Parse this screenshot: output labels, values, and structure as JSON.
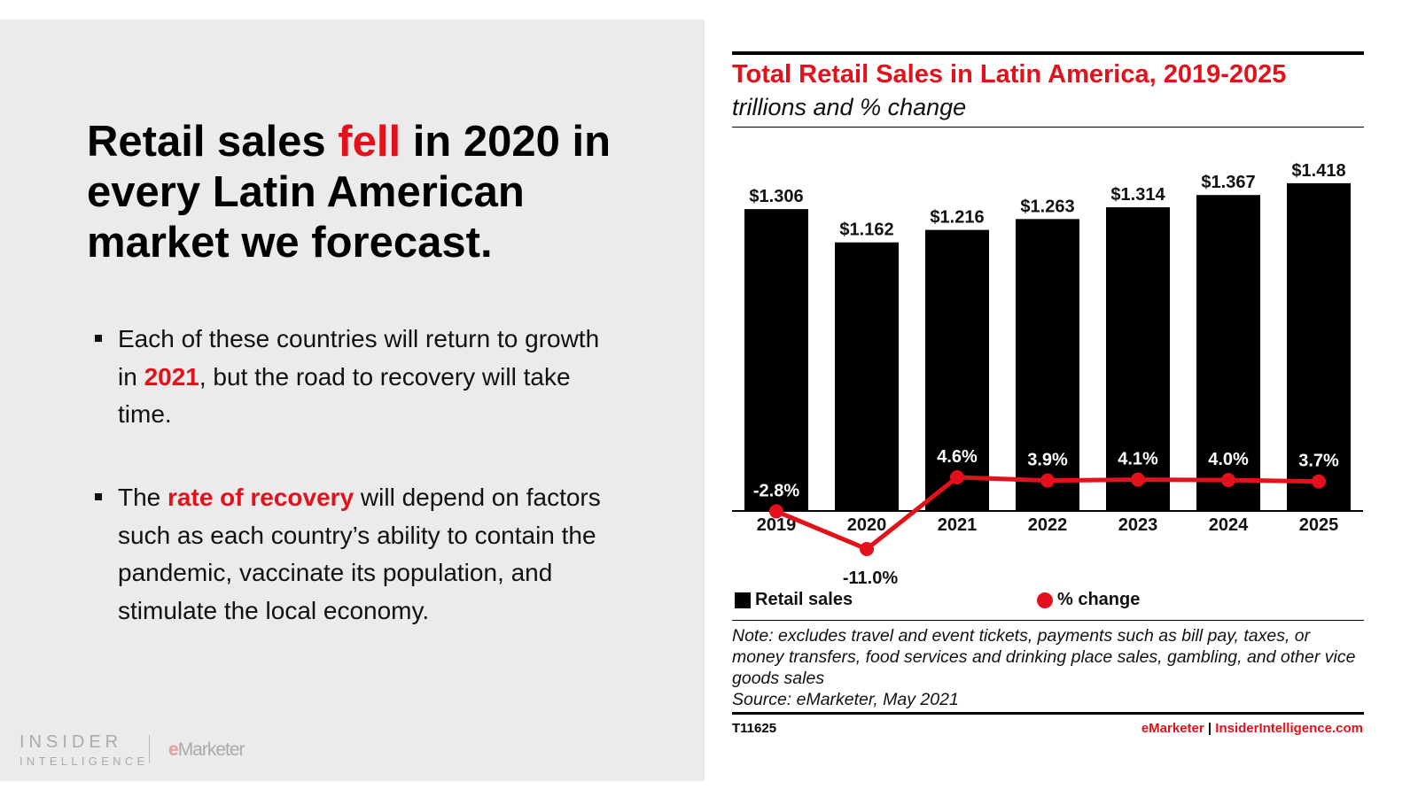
{
  "left": {
    "headline": {
      "pre": "Retail sales ",
      "highlight": "fell",
      "post": " in 2020 in every Latin American market we forecast."
    },
    "bullets": [
      {
        "pre": "Each of these countries will return to growth in ",
        "highlight": "2021",
        "post": ", but the road to recovery will take time."
      },
      {
        "pre": "The ",
        "highlight": "rate of recovery",
        "post": " will depend on factors such as each country’s ability to contain the pandemic, vaccinate its population, and stimulate the local economy."
      }
    ],
    "logo": {
      "line1": "INSIDER",
      "line2": "INTELLIGENCE",
      "partner_e": "e",
      "partner_rest": "Marketer"
    }
  },
  "chart_data": {
    "type": "bar",
    "title": "Total Retail Sales in Latin America, 2019-2025",
    "subtitle": "trillions and % change",
    "categories": [
      "2019",
      "2020",
      "2021",
      "2022",
      "2023",
      "2024",
      "2025"
    ],
    "series": [
      {
        "name": "Retail sales",
        "type": "bar",
        "values": [
          1.306,
          1.162,
          1.216,
          1.263,
          1.314,
          1.367,
          1.418
        ],
        "labels": [
          "$1.306",
          "$1.162",
          "$1.216",
          "$1.263",
          "$1.314",
          "$1.367",
          "$1.418"
        ],
        "color": "#000000"
      },
      {
        "name": "% change",
        "type": "line",
        "values": [
          -2.8,
          -11.0,
          4.6,
          3.9,
          4.1,
          4.0,
          3.7
        ],
        "labels": [
          "-2.8%",
          "-11.0%",
          "4.6%",
          "3.9%",
          "4.1%",
          "4.0%",
          "3.7%"
        ],
        "color": "#e3111b"
      }
    ],
    "legend": "bottom",
    "grid": false
  },
  "note": "Note: excludes travel and event tickets, payments such as bill pay, taxes, or money transfers, food services and drinking place sales, gambling, and other vice goods sales",
  "source": "Source: eMarketer, May 2021",
  "footer": {
    "code": "T11625",
    "brand1": "eMarketer",
    "sep": " | ",
    "brand2": "InsiderIntelligence.com"
  },
  "colors": {
    "accent": "#e3111b",
    "panel": "#ebebeb"
  }
}
